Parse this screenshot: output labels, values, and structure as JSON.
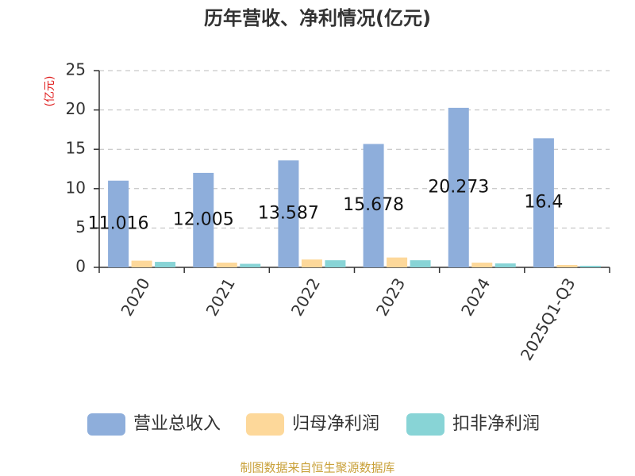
{
  "chart_data": {
    "type": "bar",
    "title": "历年营收、净利情况(亿元)",
    "y_label": "(亿元)",
    "categories": [
      "2020",
      "2021",
      "2022",
      "2023",
      "2024",
      "2025Q1-Q3"
    ],
    "series": [
      {
        "name": "营业总收入",
        "color": "#8eaedb",
        "values": [
          11.016,
          12.005,
          13.587,
          15.678,
          20.273,
          16.4
        ],
        "show_labels": true
      },
      {
        "name": "归母净利润",
        "color": "#fdd89a",
        "values": [
          0.85,
          0.6,
          1.0,
          1.25,
          0.6,
          0.3
        ]
      },
      {
        "name": "扣非净利润",
        "color": "#88d4d6",
        "values": [
          0.7,
          0.45,
          0.9,
          0.9,
          0.5,
          0.2
        ]
      }
    ],
    "ylim": [
      0,
      25
    ],
    "yticks": [
      0,
      5,
      10,
      15,
      20,
      25
    ],
    "grid": true,
    "legend": "bottom",
    "source": "制图数据来自恒生聚源数据库"
  }
}
